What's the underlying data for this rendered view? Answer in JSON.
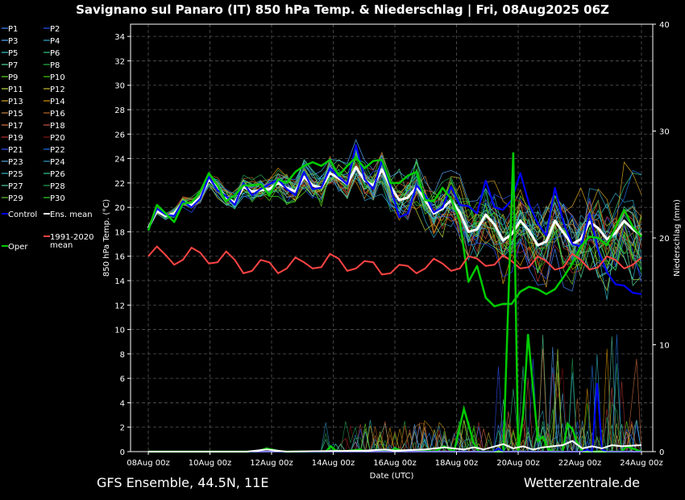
{
  "chart_data": {
    "type": "line",
    "title": "Savignano sul Panaro  (IT)  850 hPa Temp. & Niederschlag | Fri, 08Aug2025 06Z",
    "xlabel": "Date (UTC)",
    "ylabel": "850 hPa Temp. (°C)",
    "y2label": "Niederschlag (mm)",
    "x_ticks": [
      "08Aug 00z",
      "10Aug 00z",
      "12Aug 00z",
      "14Aug 00z",
      "16Aug 00z",
      "18Aug 00z",
      "20Aug 00z",
      "22Aug 00z",
      "24Aug 00z"
    ],
    "ylim": [
      0,
      35
    ],
    "y_ticks": [
      0,
      2,
      4,
      6,
      8,
      10,
      12,
      14,
      16,
      18,
      20,
      22,
      24,
      26,
      28,
      30,
      32,
      34
    ],
    "y2lim": [
      0,
      40
    ],
    "y2_ticks": [
      0,
      10,
      20,
      30,
      40
    ],
    "grid": true,
    "footer_left": "GFS Ensemble, 44.5N, 11E",
    "footer_right": "Wetterzentrale.de",
    "legend": {
      "members": [
        {
          "name": "P1",
          "color": "#4488ff"
        },
        {
          "name": "P2",
          "color": "#2255ff"
        },
        {
          "name": "P3",
          "color": "#55aaff"
        },
        {
          "name": "P4",
          "color": "#33aacc"
        },
        {
          "name": "P5",
          "color": "#33cccc"
        },
        {
          "name": "P6",
          "color": "#33cc88"
        },
        {
          "name": "P7",
          "color": "#55dd99"
        },
        {
          "name": "P8",
          "color": "#22bb44"
        },
        {
          "name": "P9",
          "color": "#66dd22"
        },
        {
          "name": "P10",
          "color": "#44cc00"
        },
        {
          "name": "P11",
          "color": "#bbdd44"
        },
        {
          "name": "P12",
          "color": "#ccbb33"
        },
        {
          "name": "P13",
          "color": "#ddaa22"
        },
        {
          "name": "P14",
          "color": "#dd9900"
        },
        {
          "name": "P15",
          "color": "#cc8844"
        },
        {
          "name": "P16",
          "color": "#bb6622"
        },
        {
          "name": "P17",
          "color": "#dd7744"
        },
        {
          "name": "P18",
          "color": "#cc5544"
        },
        {
          "name": "P19",
          "color": "#bb3333"
        },
        {
          "name": "P20",
          "color": "#881111"
        },
        {
          "name": "P21",
          "color": "#3355ff"
        },
        {
          "name": "P22",
          "color": "#2277ee"
        },
        {
          "name": "P23",
          "color": "#55aadd"
        },
        {
          "name": "P24",
          "color": "#3399cc"
        },
        {
          "name": "P25",
          "color": "#33bbcc"
        },
        {
          "name": "P26",
          "color": "#33cc99"
        },
        {
          "name": "P27",
          "color": "#55ccaa"
        },
        {
          "name": "P28",
          "color": "#22aa55"
        },
        {
          "name": "P29",
          "color": "#66cc33"
        },
        {
          "name": "P30",
          "color": "#33dd22"
        }
      ],
      "control": {
        "name": "Control",
        "color": "#0000ff"
      },
      "mean": {
        "name": "Ens. mean",
        "color": "#ffffff"
      },
      "oper": {
        "name": "Oper",
        "color": "#00cc00"
      },
      "clim": {
        "name": "1991-2020 mean",
        "color": "#ff4444"
      }
    },
    "series": [
      {
        "name": "Ens. mean",
        "color": "#ffffff",
        "values": [
          18.3,
          19.7,
          19.3,
          19.5,
          20.4,
          20.2,
          20.8,
          22.3,
          21.6,
          20.8,
          20.4,
          21.7,
          21.3,
          21.4,
          21.5,
          22.0,
          21.6,
          21.3,
          22.5,
          21.8,
          21.6,
          22.8,
          22.4,
          21.9,
          23.3,
          22.2,
          21.8,
          23.1,
          21.7,
          20.6,
          20.8,
          21.7,
          20.6,
          19.5,
          19.9,
          20.6,
          19.6,
          18.0,
          18.2,
          19.4,
          18.6,
          17.3,
          17.8,
          18.9,
          18.1,
          16.9,
          17.2,
          18.9,
          17.9,
          17.0,
          17.4,
          18.8,
          18.3,
          17.4,
          17.9,
          18.9,
          18.2,
          17.7
        ]
      },
      {
        "name": "Control",
        "color": "#0000ff",
        "values": [
          18.2,
          19.9,
          19.4,
          19.3,
          20.5,
          20.0,
          20.7,
          22.5,
          21.4,
          20.9,
          20.2,
          22.0,
          21.0,
          21.5,
          21.9,
          22.3,
          21.5,
          21.0,
          22.9,
          21.5,
          21.6,
          23.2,
          22.5,
          21.9,
          25.1,
          22.3,
          21.5,
          23.8,
          21.7,
          19.2,
          19.5,
          21.8,
          21.0,
          19.6,
          20.0,
          21.7,
          20.2,
          20.1,
          19.5,
          22.2,
          20.0,
          19.8,
          20.6,
          22.8,
          20.3,
          18.7,
          17.7,
          21.6,
          18.7,
          17.0,
          16.8,
          19.5,
          16.5,
          14.7,
          13.7,
          13.6,
          13.0,
          12.9
        ]
      },
      {
        "name": "Oper",
        "color": "#00cc00",
        "values": [
          18.1,
          20.2,
          19.5,
          18.8,
          20.3,
          20.4,
          21.3,
          22.8,
          21.8,
          20.5,
          21.0,
          21.8,
          21.8,
          21.9,
          21.0,
          22.3,
          22.0,
          22.9,
          23.4,
          23.7,
          23.4,
          23.9,
          22.6,
          23.4,
          24.1,
          23.2,
          23.8,
          23.9,
          22.0,
          22.0,
          22.6,
          22.9,
          20.6,
          20.5,
          21.6,
          20.7,
          18.9,
          13.9,
          15.2,
          12.6,
          11.9,
          12.1,
          12.1,
          13.1,
          13.5,
          13.3,
          12.9,
          13.3,
          14.3,
          15.4,
          16.8,
          17.6,
          17.5,
          16.9,
          18.4,
          19.8,
          18.4,
          17.6
        ]
      },
      {
        "name": "1991-2020 mean",
        "color": "#ff4444",
        "values": [
          16.0,
          16.8,
          16.1,
          15.3,
          15.7,
          16.7,
          16.3,
          15.4,
          15.5,
          16.4,
          15.7,
          14.6,
          14.8,
          15.7,
          15.5,
          14.6,
          15.0,
          15.9,
          15.5,
          15.0,
          15.1,
          16.2,
          15.8,
          14.8,
          15.0,
          15.6,
          15.5,
          14.5,
          14.6,
          15.3,
          15.2,
          14.6,
          15.0,
          15.8,
          15.4,
          14.8,
          15.0,
          16.0,
          15.8,
          15.2,
          15.3,
          16.1,
          15.6,
          15.0,
          15.1,
          16.0,
          15.6,
          14.9,
          15.1,
          16.2,
          15.7,
          14.9,
          15.1,
          16.0,
          15.7,
          15.0,
          15.3,
          15.9
        ]
      },
      {
        "name": "Precip Oper",
        "axis": "y2",
        "color": "#00cc00",
        "values": [
          0,
          0,
          0,
          0,
          0,
          0,
          0,
          0,
          0,
          0,
          0,
          0,
          0,
          0,
          0,
          0,
          0,
          0,
          0,
          0,
          0,
          0,
          0,
          0,
          0,
          0,
          0,
          0,
          0,
          0,
          0,
          0,
          0,
          0,
          0,
          0,
          0.3,
          0.1,
          0,
          0,
          0,
          4,
          2.5,
          0,
          0,
          0,
          0,
          0,
          0,
          0,
          0,
          0,
          0,
          0,
          0,
          0,
          0,
          0
        ]
      },
      {
        "name": "Precip Control",
        "axis": "y2",
        "color": "#0000ff",
        "values": [
          0,
          0,
          0,
          0,
          0,
          0,
          0,
          0,
          0,
          0,
          0,
          0,
          0,
          0,
          0,
          0,
          0,
          0,
          0,
          0,
          0,
          0,
          0,
          0,
          0,
          0,
          0,
          0,
          0,
          0,
          0,
          0,
          0,
          0,
          0,
          0,
          0,
          0,
          0,
          0,
          0,
          0,
          0,
          0,
          0,
          0,
          0,
          0,
          0,
          0,
          0,
          0,
          0,
          0,
          0,
          0,
          0,
          0
        ]
      },
      {
        "name": "Precip Mean",
        "axis": "y2",
        "color": "#ffffff",
        "values": [
          0,
          0,
          0,
          0,
          0,
          0,
          0,
          0,
          0,
          0,
          0,
          0,
          0,
          0,
          0,
          0,
          0,
          0,
          0,
          0,
          0,
          0,
          0,
          0,
          0,
          0,
          0,
          0,
          0,
          0,
          0,
          0,
          0,
          0,
          0,
          0,
          0,
          0,
          0,
          0,
          0,
          0,
          0,
          0,
          0,
          0,
          0,
          0,
          0,
          0,
          0,
          0,
          0,
          0,
          0,
          0,
          0,
          0
        ]
      }
    ],
    "precip_spikes": [
      {
        "name": "Oper",
        "color": "#00cc00",
        "points": [
          [
            0,
            0
          ],
          [
            22,
            0
          ],
          [
            24,
            0.3
          ],
          [
            27,
            0
          ],
          [
            36,
            0
          ],
          [
            37,
            0.5
          ],
          [
            38,
            0.1
          ],
          [
            39,
            0
          ],
          [
            43,
            0.2
          ],
          [
            44,
            0
          ],
          [
            46,
            0.1
          ],
          [
            49,
            0
          ],
          [
            50,
            0.3
          ],
          [
            52,
            0
          ],
          [
            56,
            0.1
          ],
          [
            58,
            0
          ],
          [
            60,
            0.5
          ],
          [
            62,
            0
          ],
          [
            64,
            4.0
          ],
          [
            66,
            0.8
          ],
          [
            67,
            0
          ],
          [
            72,
            0
          ],
          [
            74,
            28.0
          ],
          [
            75,
            0
          ],
          [
            76,
            3.5
          ],
          [
            77,
            11.0
          ],
          [
            79,
            1.0
          ],
          [
            80,
            1.4
          ],
          [
            81,
            0.3
          ],
          [
            82,
            0
          ],
          [
            84,
            0
          ],
          [
            85,
            2.6
          ],
          [
            86,
            2.1
          ],
          [
            87,
            0.8
          ],
          [
            88,
            0
          ],
          [
            96,
            0
          ],
          [
            97,
            0.5
          ],
          [
            100,
            0
          ]
        ]
      },
      {
        "name": "Control",
        "color": "#0000ff",
        "points": [
          [
            0,
            0
          ],
          [
            70,
            0
          ],
          [
            71,
            0.3
          ],
          [
            72,
            0
          ],
          [
            88,
            0
          ],
          [
            89,
            0.2
          ],
          [
            90,
            0
          ],
          [
            91,
            6.4
          ],
          [
            92,
            0.2
          ],
          [
            93,
            0
          ],
          [
            100,
            0
          ]
        ]
      },
      {
        "name": "Ens. mean",
        "color": "#ffffff",
        "points": [
          [
            0,
            0
          ],
          [
            20,
            0
          ],
          [
            24,
            0.2
          ],
          [
            28,
            0
          ],
          [
            44,
            0.1
          ],
          [
            48,
            0.2
          ],
          [
            50,
            0.1
          ],
          [
            56,
            0.2
          ],
          [
            60,
            0.4
          ],
          [
            64,
            0.2
          ],
          [
            66,
            0.4
          ],
          [
            68,
            0.2
          ],
          [
            72,
            0.7
          ],
          [
            74,
            0.3
          ],
          [
            76,
            0.5
          ],
          [
            78,
            0.2
          ],
          [
            80,
            0.4
          ],
          [
            84,
            0.6
          ],
          [
            86,
            1.0
          ],
          [
            88,
            0.3
          ],
          [
            90,
            0.5
          ],
          [
            92,
            0.3
          ],
          [
            94,
            0.6
          ],
          [
            96,
            0.5
          ],
          [
            100,
            0.6
          ]
        ]
      }
    ]
  }
}
